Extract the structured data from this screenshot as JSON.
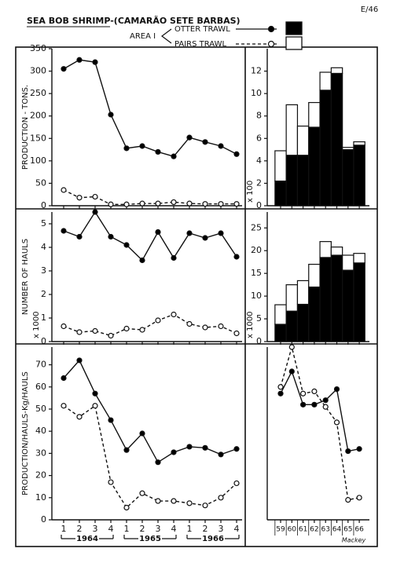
{
  "page_ref": "E/46",
  "title": "SEA BOB SHRIMP-(CAMARÃO SETE BARBAS)",
  "area": "AREA I",
  "signature": "Mackey",
  "chart_data": [
    {
      "type": "line",
      "ylabel": "PRODUCTION - TONS.",
      "series": [
        {
          "name": "OTTER TRAWL",
          "color": "#000000",
          "line_style": "solid",
          "values": [
            305,
            325,
            320,
            203,
            128,
            133,
            120,
            110,
            152,
            142,
            133,
            115
          ]
        },
        {
          "name": "PAIRS TRAWL",
          "color": "#ffffff",
          "line_style": "dashed",
          "values": [
            35,
            18,
            20,
            3,
            3,
            5,
            5,
            8,
            5,
            4,
            4,
            4
          ]
        }
      ],
      "ylim": [
        0,
        350
      ],
      "yticks": [
        0,
        50,
        100,
        150,
        200,
        250,
        300,
        350
      ]
    },
    {
      "type": "stacked_bar",
      "ylabel": "x 100",
      "series": [
        {
          "name": "OTTER TRAWL",
          "color": "#000000",
          "values": [
            2.2,
            4.5,
            4.5,
            7.0,
            10.3,
            11.8,
            5.0,
            5.4
          ]
        },
        {
          "name": "PAIRS TRAWL",
          "color": "#ffffff",
          "values": [
            2.7,
            4.5,
            2.6,
            2.2,
            1.6,
            0.5,
            0.2,
            0.3
          ]
        }
      ],
      "ylim": [
        0,
        14
      ],
      "yticks": [
        0,
        2,
        4,
        6,
        8,
        10,
        12
      ]
    },
    {
      "type": "line",
      "ylabel": "NUMBER OF HAULS",
      "ylabel_unit": "x 1000",
      "series": [
        {
          "name": "OTTER TRAWL",
          "color": "#000000",
          "line_style": "solid",
          "values": [
            4.7,
            4.45,
            5.5,
            4.45,
            4.1,
            3.45,
            4.65,
            3.55,
            4.6,
            4.4,
            4.6,
            3.6
          ]
        },
        {
          "name": "PAIRS TRAWL",
          "color": "#ffffff",
          "line_style": "dashed",
          "values": [
            0.65,
            0.4,
            0.45,
            0.25,
            0.55,
            0.5,
            0.9,
            1.15,
            0.75,
            0.6,
            0.65,
            0.35
          ]
        }
      ],
      "ylim": [
        0,
        5.5
      ],
      "yticks": [
        0,
        1,
        2,
        3,
        4,
        5
      ]
    },
    {
      "type": "stacked_bar",
      "ylabel": "x 1000",
      "series": [
        {
          "name": "OTTER TRAWL",
          "color": "#000000",
          "values": [
            3.8,
            6.7,
            8.2,
            12,
            18.5,
            19,
            15.7,
            17.3
          ]
        },
        {
          "name": "PAIRS TRAWL",
          "color": "#ffffff",
          "values": [
            4.3,
            5.8,
            5.2,
            5.0,
            3.5,
            1.8,
            3.3,
            2.1
          ]
        }
      ],
      "ylim": [
        0,
        28.5
      ],
      "yticks": [
        0,
        5,
        10,
        15,
        20,
        25
      ]
    },
    {
      "type": "line",
      "ylabel": "PRODUCTION/HAULS-Kg/HAULS",
      "categories": [
        "1",
        "2",
        "3",
        "4",
        "1",
        "2",
        "3",
        "4",
        "1",
        "2",
        "3",
        "4"
      ],
      "groups": [
        "1964",
        "1965",
        "1966"
      ],
      "series": [
        {
          "name": "OTTER TRAWL",
          "color": "#000000",
          "line_style": "solid",
          "values": [
            64,
            72,
            57,
            45,
            31.5,
            39,
            26,
            30.5,
            33,
            32.5,
            29.5,
            32
          ]
        },
        {
          "name": "PAIRS TRAWL",
          "color": "#ffffff",
          "line_style": "dashed",
          "values": [
            51.5,
            46.5,
            51.5,
            17,
            5.5,
            12,
            8.5,
            8.5,
            7.5,
            6.5,
            10,
            16.5
          ]
        }
      ],
      "ylim": [
        0,
        78
      ],
      "yticks": [
        0,
        10,
        20,
        30,
        40,
        50,
        60,
        70
      ]
    },
    {
      "type": "line",
      "categories": [
        "59",
        "60",
        "61",
        "62",
        "63",
        "64",
        "65",
        "66"
      ],
      "series": [
        {
          "name": "OTTER TRAWL",
          "color": "#000000",
          "line_style": "solid",
          "values": [
            57,
            67,
            52,
            52,
            54,
            59,
            31,
            32
          ]
        },
        {
          "name": "PAIRS TRAWL",
          "color": "#ffffff",
          "line_style": "dashed",
          "values": [
            60,
            78,
            57,
            58,
            51,
            44,
            9,
            10
          ]
        }
      ],
      "ylim": [
        0,
        78
      ]
    }
  ]
}
